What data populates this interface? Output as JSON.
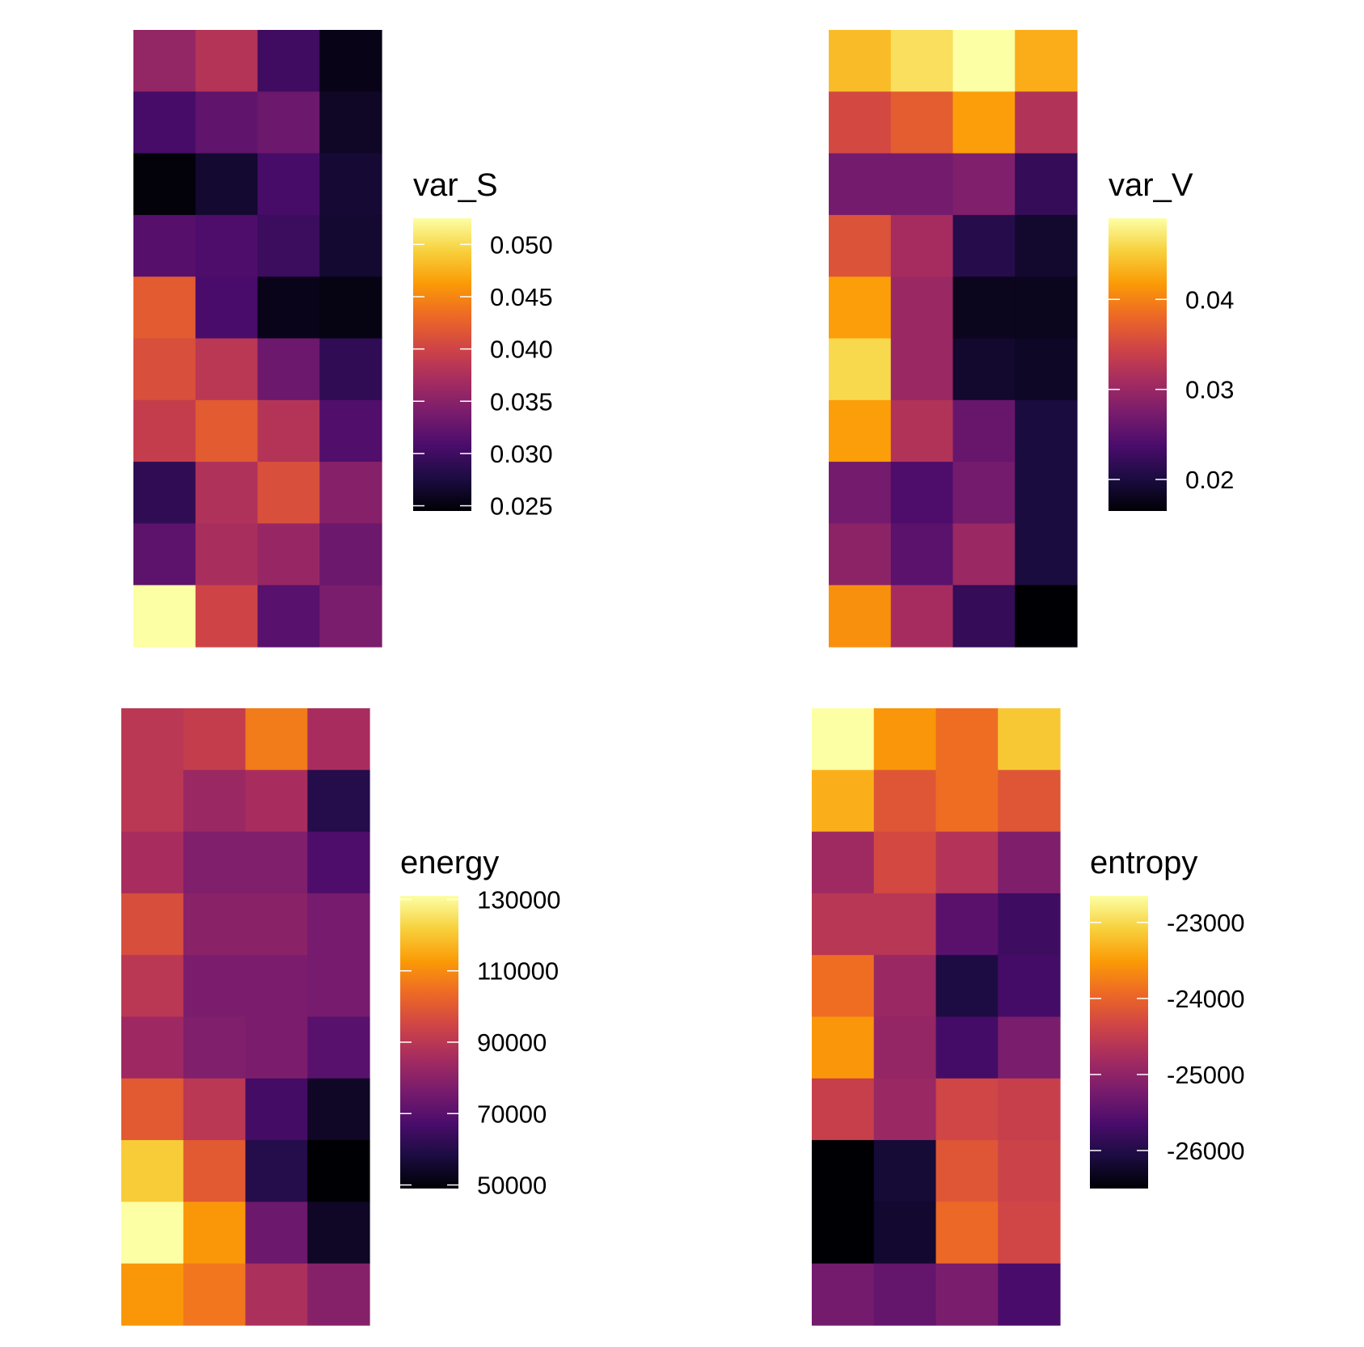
{
  "colormap": "inferno",
  "chart_data": [
    {
      "type": "heatmap",
      "legend_title": "var_S",
      "scale": {
        "min": 0.0245,
        "max": 0.0525
      },
      "legend_ticks": [
        {
          "value": 0.025,
          "label": "0.025"
        },
        {
          "value": 0.03,
          "label": "0.030"
        },
        {
          "value": 0.035,
          "label": "0.035"
        },
        {
          "value": 0.04,
          "label": "0.040"
        },
        {
          "value": 0.045,
          "label": "0.045"
        },
        {
          "value": 0.05,
          "label": "0.050"
        }
      ],
      "values": [
        [
          0.0357,
          0.038,
          0.03,
          0.0254
        ],
        [
          0.0305,
          0.0322,
          0.033,
          0.0262
        ],
        [
          0.0248,
          0.0268,
          0.0305,
          0.027
        ],
        [
          0.0315,
          0.031,
          0.0298,
          0.0268
        ],
        [
          0.042,
          0.0307,
          0.0256,
          0.0252
        ],
        [
          0.041,
          0.0385,
          0.033,
          0.029
        ],
        [
          0.0392,
          0.042,
          0.038,
          0.0312
        ],
        [
          0.029,
          0.0377,
          0.041,
          0.0347
        ],
        [
          0.032,
          0.0372,
          0.036,
          0.033
        ],
        [
          0.0525,
          0.04,
          0.0317,
          0.034
        ]
      ]
    },
    {
      "type": "heatmap",
      "legend_title": "var_V",
      "scale": {
        "min": 0.0165,
        "max": 0.049
      },
      "legend_ticks": [
        {
          "value": 0.02,
          "label": "0.02"
        },
        {
          "value": 0.03,
          "label": "0.03"
        },
        {
          "value": 0.04,
          "label": "0.04"
        }
      ],
      "values": [
        [
          0.044,
          0.0465,
          0.049,
          0.043
        ],
        [
          0.035,
          0.037,
          0.042,
          0.032
        ],
        [
          0.027,
          0.027,
          0.028,
          0.022
        ],
        [
          0.036,
          0.031,
          0.021,
          0.019
        ],
        [
          0.042,
          0.03,
          0.018,
          0.018
        ],
        [
          0.046,
          0.03,
          0.019,
          0.0185
        ],
        [
          0.042,
          0.032,
          0.026,
          0.02
        ],
        [
          0.027,
          0.024,
          0.027,
          0.02
        ],
        [
          0.029,
          0.025,
          0.03,
          0.02
        ],
        [
          0.041,
          0.031,
          0.022,
          0.0165
        ]
      ]
    },
    {
      "type": "heatmap",
      "legend_title": "energy",
      "scale": {
        "min": 49000,
        "max": 131000
      },
      "legend_ticks": [
        {
          "value": 50000,
          "label": "50000"
        },
        {
          "value": 70000,
          "label": "70000"
        },
        {
          "value": 90000,
          "label": "90000"
        },
        {
          "value": 110000,
          "label": "110000"
        },
        {
          "value": 130000,
          "label": "130000"
        }
      ],
      "values": [
        [
          90000,
          92000,
          107000,
          86000
        ],
        [
          90000,
          83000,
          86000,
          60000
        ],
        [
          86000,
          78000,
          78000,
          68000
        ],
        [
          97000,
          80000,
          80000,
          76000
        ],
        [
          90000,
          77000,
          77000,
          76000
        ],
        [
          84000,
          78000,
          77000,
          70000
        ],
        [
          100000,
          90000,
          66000,
          54000
        ],
        [
          121000,
          100000,
          60000,
          49000
        ],
        [
          131000,
          112000,
          74000,
          54000
        ],
        [
          112000,
          106000,
          87000,
          79000
        ]
      ]
    },
    {
      "type": "heatmap",
      "legend_title": "entropy",
      "scale": {
        "min": -26500,
        "max": -22650
      },
      "legend_ticks": [
        {
          "value": -26000,
          "label": "-26000"
        },
        {
          "value": -25000,
          "label": "-25000"
        },
        {
          "value": -24000,
          "label": "-24000"
        },
        {
          "value": -23000,
          "label": "-23000"
        }
      ],
      "values": [
        [
          -22650,
          -23550,
          -23900,
          -23150
        ],
        [
          -23350,
          -24150,
          -23900,
          -24150
        ],
        [
          -24850,
          -24300,
          -24650,
          -25150
        ],
        [
          -24600,
          -24600,
          -25500,
          -25750
        ],
        [
          -23900,
          -24900,
          -26050,
          -25700
        ],
        [
          -23550,
          -24950,
          -25700,
          -25200
        ],
        [
          -24450,
          -24900,
          -24350,
          -24450
        ],
        [
          -26500,
          -26150,
          -24150,
          -24400
        ],
        [
          -26500,
          -26200,
          -23950,
          -24350
        ],
        [
          -25250,
          -25400,
          -25200,
          -25650
        ]
      ]
    }
  ]
}
